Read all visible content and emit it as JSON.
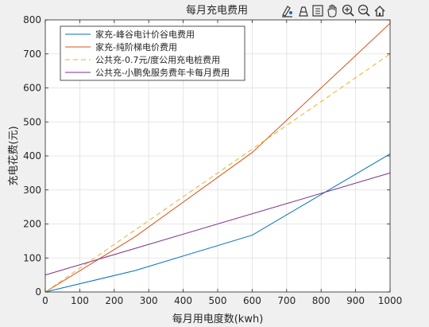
{
  "toolbar": {
    "icons": [
      "brush-data-icon",
      "data-tips-icon",
      "save-export-icon",
      "pan-hand-icon",
      "zoom-in-icon",
      "zoom-out-icon",
      "home-restore-icon"
    ]
  },
  "chart_data": {
    "type": "line",
    "title": "每月充电费用",
    "xlabel": "每月用电度数(kwh)",
    "ylabel": "充电花费(元)",
    "xlim": [
      0,
      1000
    ],
    "ylim": [
      0,
      800
    ],
    "xticks": [
      0,
      100,
      200,
      300,
      400,
      500,
      600,
      700,
      800,
      900,
      1000
    ],
    "yticks": [
      0,
      100,
      200,
      300,
      400,
      500,
      600,
      700,
      800
    ],
    "grid": true,
    "legend_position": "top-left",
    "series": [
      {
        "name": "家充-峰谷电计价谷电费用",
        "color": "#0072bd",
        "dash": "solid",
        "x": [
          0,
          260,
          600,
          1000
        ],
        "y": [
          0,
          63,
          167,
          406
        ]
      },
      {
        "name": "家充-纯阶梯电价费用",
        "color": "#d95319",
        "dash": "solid",
        "x": [
          0,
          260,
          600,
          1000
        ],
        "y": [
          0,
          162,
          410,
          790
        ]
      },
      {
        "name": "公共充-0.7元/度公用充电桩费用",
        "color": "#edb120",
        "dash": "dashed",
        "x": [
          0,
          1000
        ],
        "y": [
          0,
          700
        ]
      },
      {
        "name": "公共充-小鹏免服务费年卡每月费用",
        "color": "#7e2f8e",
        "dash": "solid",
        "x": [
          0,
          1000
        ],
        "y": [
          50,
          350
        ]
      }
    ]
  }
}
